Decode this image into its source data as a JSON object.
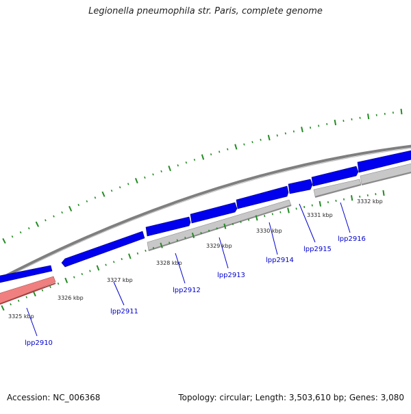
{
  "title": "Legionella pneumophila str. Paris, complete genome",
  "footer": {
    "accession": "Accession: NC_006368",
    "summary": "Topology: circular; Length: 3,503,610 bp; Genes: 3,080"
  },
  "colors": {
    "forward_cds": "#0000ee",
    "reverse_cds": "#c8c8c8",
    "highlight_cds": "#f08080",
    "backbone": "#808080",
    "gc_tick": "#228b22",
    "ticks": "#006400",
    "gene_label": "#0000cd"
  },
  "ruler": [
    {
      "label": "3325 kbp",
      "value": 3325
    },
    {
      "label": "3326 kbp",
      "value": 3326
    },
    {
      "label": "3327 kbp",
      "value": 3327
    },
    {
      "label": "3328 kbp",
      "value": 3328
    },
    {
      "label": "3329 kbp",
      "value": 3329
    },
    {
      "label": "3330 kbp",
      "value": 3330
    },
    {
      "label": "3331 kbp",
      "value": 3331
    },
    {
      "label": "3332 kbp",
      "value": 3332
    }
  ],
  "genes": [
    {
      "label": "lpp2910",
      "strand": "reverse",
      "highlight": true
    },
    {
      "label": "lpp2911",
      "strand": "forward"
    },
    {
      "label": "lpp2912",
      "strand": "forward"
    },
    {
      "label": "lpp2913",
      "strand": "forward"
    },
    {
      "label": "lpp2914",
      "strand": "forward"
    },
    {
      "label": "lpp2915",
      "strand": "forward"
    },
    {
      "label": "lpp2916",
      "strand": "forward"
    }
  ]
}
